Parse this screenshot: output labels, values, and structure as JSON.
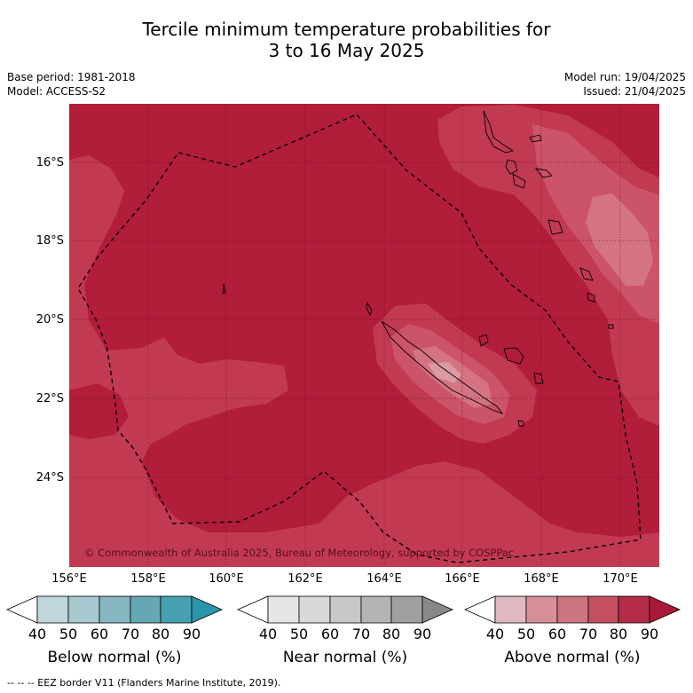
{
  "title": {
    "line1": "Tercile minimum temperature probabilities for",
    "line2": "3 to 16 May 2025"
  },
  "meta": {
    "base_period": "Base period: 1981-2018",
    "model": "Model: ACCESS-S2",
    "model_run": "Model run: 19/04/2025",
    "issued": "Issued: 21/04/2025"
  },
  "map": {
    "lat_ticks": [
      "16°S",
      "18°S",
      "20°S",
      "22°S",
      "24°S"
    ],
    "lon_ticks": [
      "156°E",
      "158°E",
      "160°E",
      "162°E",
      "164°E",
      "166°E",
      "168°E",
      "170°E"
    ],
    "copyright": "© Commonwealth of Australia 2025, Bureau of Meteorology, supported by COSPPac",
    "base_color": "#b21d3a"
  },
  "colorbars": {
    "tick_labels": [
      "40",
      "50",
      "60",
      "70",
      "80",
      "90"
    ],
    "below": {
      "title": "Below normal (%)",
      "colors": [
        "#ffffff",
        "#c0d6dc",
        "#a6c8ce",
        "#86b6c0",
        "#66a7b4",
        "#46a0b2",
        "#2a95ab"
      ]
    },
    "near": {
      "title": "Near normal (%)",
      "colors": [
        "#ffffff",
        "#e6e6e6",
        "#d8d8d8",
        "#c8c8c8",
        "#b4b4b4",
        "#a0a0a0",
        "#888888"
      ]
    },
    "above": {
      "title": "Above normal (%)",
      "colors": [
        "#ffffff",
        "#dfb8c0",
        "#d79098",
        "#cc7480",
        "#c4505f",
        "#b42c47",
        "#aa1838"
      ]
    }
  },
  "footer": "-- -- -- EEZ border V11 (Flanders Marine Institute, 2019)."
}
